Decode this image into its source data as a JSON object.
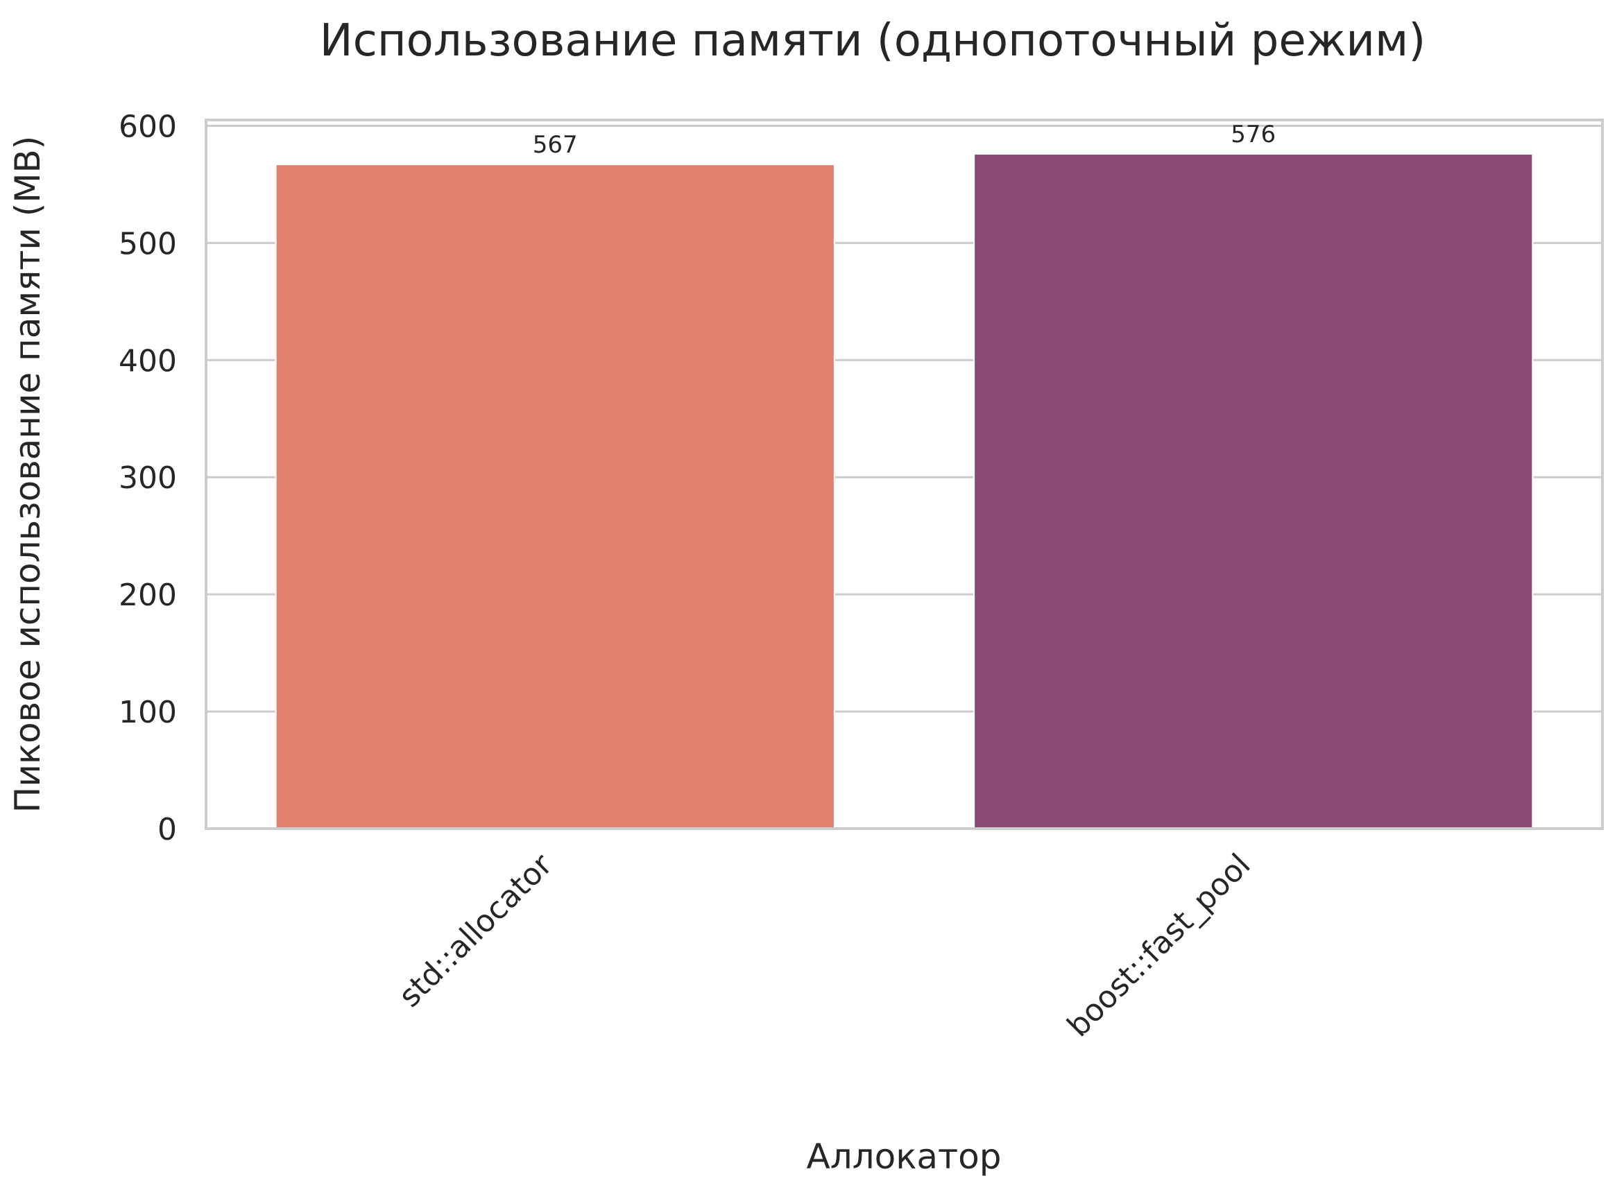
{
  "chart_data": {
    "type": "bar",
    "title": "Использование памяти (однопоточный режим)",
    "xlabel": "Аллокатор",
    "ylabel": "Пиковое использование памяти (MB)",
    "categories": [
      "std::allocator",
      "boost::fast_pool"
    ],
    "values": [
      567,
      576
    ],
    "data_labels": [
      "567",
      "576"
    ],
    "colors": [
      "#e0806f",
      "#8b4a73"
    ],
    "ylim": [
      0,
      605
    ],
    "yticks": [
      0,
      100,
      200,
      300,
      400,
      500,
      600
    ],
    "ytick_labels": [
      "0",
      "100",
      "200",
      "300",
      "400",
      "500",
      "600"
    ],
    "grid": true,
    "grid_axis": "y",
    "legend": "none"
  }
}
